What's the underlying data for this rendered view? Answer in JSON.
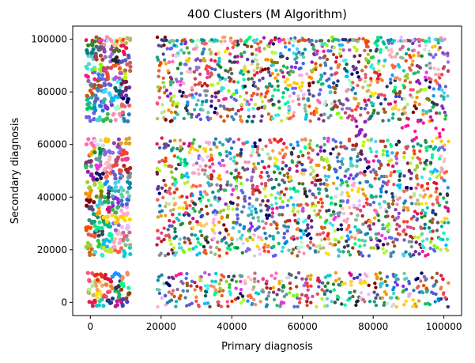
{
  "chart_data": {
    "type": "scatter",
    "title": "400 Clusters (M Algorithm)",
    "xlabel": "Primary diagnosis",
    "ylabel": "Secondary diagnosis",
    "xlim": [
      -5000,
      105000
    ],
    "ylim": [
      -5000,
      105000
    ],
    "xticks": [
      0,
      20000,
      40000,
      60000,
      80000,
      100000
    ],
    "yticks": [
      0,
      20000,
      40000,
      60000,
      80000,
      100000
    ],
    "xtick_labels": [
      "0",
      "20000",
      "40000",
      "60000",
      "80000",
      "100000"
    ],
    "ytick_labels": [
      "0",
      "20000",
      "40000",
      "60000",
      "80000",
      "100000"
    ],
    "grid": false,
    "legend": "none",
    "n_clusters": 400,
    "x_bands": [
      [
        0,
        11000
      ],
      [
        19000,
        100000
      ]
    ],
    "y_bands": [
      [
        0,
        12000
      ],
      [
        19000,
        63000
      ],
      [
        68000,
        100000
      ]
    ],
    "sparse_y_band": [
      63000,
      68000
    ],
    "sparse_y_cols": [
      [
        74000,
        78000
      ],
      [
        88000,
        100000
      ]
    ],
    "palette": [
      "#e6194b",
      "#3cb44b",
      "#ffe119",
      "#4363d8",
      "#f58231",
      "#911eb4",
      "#46f0f0",
      "#f032e6",
      "#bcf60c",
      "#fabebe",
      "#008080",
      "#e6beff",
      "#9a6324",
      "#800000",
      "#aaffc3",
      "#808000",
      "#000075",
      "#1e90ff",
      "#ff1493",
      "#00ced1",
      "#7cfc00",
      "#ff4500",
      "#9370db",
      "#2e8b57",
      "#daa520",
      "#c71585",
      "#20b2aa",
      "#8b4513",
      "#4682b4",
      "#d2691e",
      "#6a5acd",
      "#32cd32",
      "#b22222",
      "#00fa9a",
      "#ff69b4",
      "#556b2f",
      "#48d1cc",
      "#bdb76b",
      "#8a2be2",
      "#f4a460",
      "#66cdaa",
      "#dc143c",
      "#3cb371",
      "#ba55d3",
      "#5f9ea0",
      "#cd5c5c",
      "#7b68ee",
      "#228b22",
      "#ffd700",
      "#1e3a8a",
      "#ff8c00",
      "#00bfff",
      "#adff2f",
      "#663399",
      "#ff6347",
      "#40e0d0",
      "#8fbc8f",
      "#c0392b",
      "#16a085",
      "#8e44ad",
      "#f39c12",
      "#2980b9",
      "#27ae60",
      "#d35400",
      "#00ff7f",
      "#a0522d",
      "#9acd32",
      "#e74c3c",
      "#34495e",
      "#e84393",
      "#00b894",
      "#6c5ce7",
      "#fdcb6e",
      "#0984e3",
      "#b8e994",
      "#38ada9",
      "#eb2f06",
      "#1289a7",
      "#c4e538",
      "#833471",
      "#ee5a24",
      "#009432",
      "#5758bb",
      "#ffc312",
      "#12cbc4",
      "#fda7df",
      "#ed4c67",
      "#a3cb38",
      "#006266",
      "#1b1464",
      "#6f1e51",
      "#f8a5c2",
      "#63cdda",
      "#cf6a87",
      "#596275",
      "#574b90",
      "#f78fb3",
      "#3dc1d3",
      "#e66767",
      "#303952",
      "#786fa6",
      "#f19066",
      "#546de5",
      "#e15f41",
      "#c44569",
      "#0be881",
      "#ff3f34",
      "#ffd32a",
      "#05c46b",
      "#3c40c6",
      "#575fcf",
      "#ef5777",
      "#4bcffa",
      "#34e7e4",
      "#808e9b",
      "#0fbcf9",
      "#ffa801",
      "#1e272e",
      "#d2dae2"
    ]
  }
}
